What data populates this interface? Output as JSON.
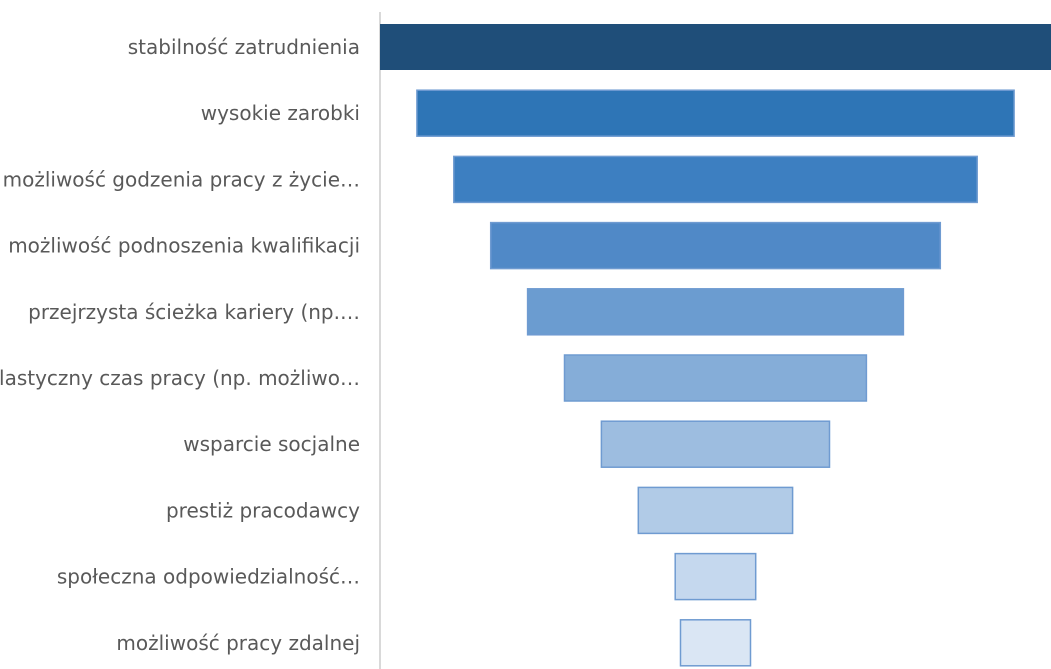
{
  "chart_data": {
    "type": "bar",
    "subtype": "funnel",
    "orientation": "horizontal",
    "categories": [
      "stabilność zatrudnienia",
      "wysokie zarobki",
      "możliwość godzenia pracy z życie…",
      "możliwość podnoszenia kwalifikacji",
      "przejrzysta ścieżka kariery (np.…",
      "elastyczny czas pracy (np. możliwo…",
      "wsparcie socjalne",
      "prestiż pracodawcy",
      "społeczna odpowiedzialność…",
      "możliwość pracy zdalnej"
    ],
    "values": [
      100,
      89,
      78,
      67,
      56,
      45,
      34,
      23,
      12,
      1
    ],
    "colors": [
      "#1f4e79",
      "#2e75b6",
      "#3d7fc1",
      "#5089c7",
      "#6b9cd0",
      "#85add8",
      "#9dbde0",
      "#b1cbe7",
      "#c5d8ee",
      "#dae6f4"
    ],
    "stroke_color": "#6f9bd1",
    "title": "",
    "xlabel": "",
    "ylabel": "",
    "grid": false,
    "legend": "none"
  }
}
